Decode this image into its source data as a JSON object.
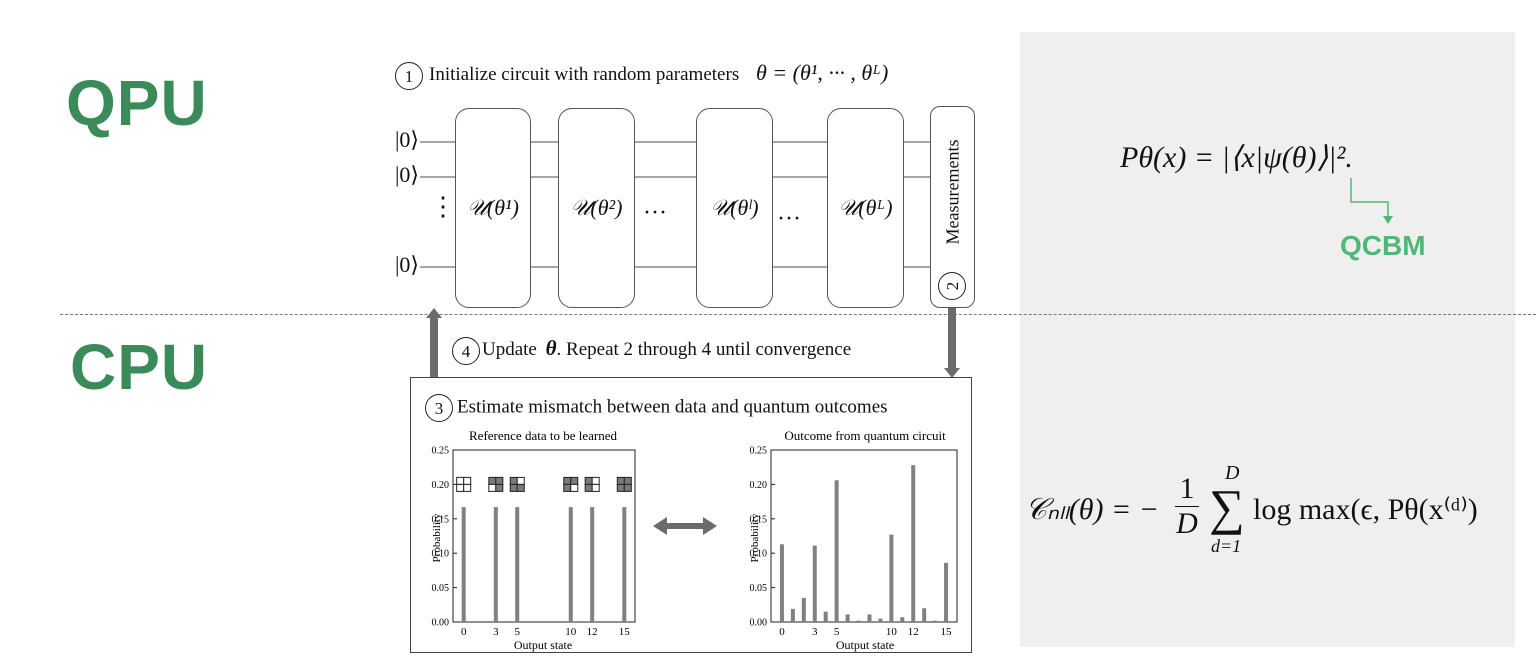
{
  "labels": {
    "qpu": "QPU",
    "cpu": "CPU",
    "qcbm": "QCBM"
  },
  "steps": {
    "step1_num": "1",
    "step1_text": "Initialize circuit with random parameters",
    "step1_math": "θ = (θ¹, ··· , θᴸ)",
    "step2_num": "2",
    "measurements": "Measurements",
    "step3_num": "3",
    "step3_text": "Estimate mismatch between data and quantum outcomes",
    "step4_num": "4",
    "step4_text_a": "Update",
    "step4_theta": "θ",
    "step4_text_b": ". Repeat 2 through 4 until convergence"
  },
  "circuit": {
    "kets": [
      "|0⟩",
      "|0⟩",
      "⋮",
      "|0⟩"
    ],
    "gates": [
      "𝒰(θ¹)",
      "𝒰(θ²)",
      "𝒰(θˡ)",
      "𝒰(θᴸ)"
    ],
    "dots": "···"
  },
  "formulas": {
    "prob": "Pθ(x) = |⟨x|ψ(θ)⟩|².",
    "cost_lhs": "𝒞ₙₗₗ(θ) = −",
    "cost_frac_num": "1",
    "cost_frac_den": "D",
    "cost_sum": "∑",
    "cost_sum_top": "D",
    "cost_sum_bottom": "d=1",
    "cost_rhs": "log max(ϵ, Pθ(x⁽ᵈ⁾)"
  },
  "chart_data": [
    {
      "type": "bar",
      "title": "Reference data to be learned",
      "xlabel": "Output state",
      "ylabel": "Probability",
      "ylim": [
        0,
        0.25
      ],
      "yticks": [
        "0.00",
        "0.05",
        "0.10",
        "0.15",
        "0.20",
        "0.25"
      ],
      "xticks": [
        "0",
        "3",
        "5",
        "10",
        "12",
        "15"
      ],
      "x": [
        0,
        3,
        5,
        10,
        12,
        15
      ],
      "values": [
        0.167,
        0.167,
        0.167,
        0.167,
        0.167,
        0.167
      ],
      "bar_color": "#808080"
    },
    {
      "type": "bar",
      "title": "Outcome from quantum circuit",
      "xlabel": "Output state",
      "ylabel": "Probability",
      "ylim": [
        0,
        0.25
      ],
      "yticks": [
        "0.00",
        "0.05",
        "0.10",
        "0.15",
        "0.20",
        "0.25"
      ],
      "xticks": [
        "0",
        "3",
        "5",
        "10",
        "12",
        "15"
      ],
      "x": [
        0,
        1,
        2,
        3,
        4,
        5,
        6,
        7,
        8,
        9,
        10,
        11,
        12,
        13,
        14,
        15
      ],
      "values": [
        0.113,
        0.019,
        0.035,
        0.111,
        0.015,
        0.206,
        0.011,
        0.002,
        0.011,
        0.005,
        0.127,
        0.007,
        0.228,
        0.02,
        0.002,
        0.086
      ],
      "bar_color": "#808080"
    }
  ],
  "colors": {
    "label_green": "#3a8a5a",
    "qcbm_green": "#4fb878",
    "panel_gray": "#efefef",
    "arrow_gray": "#6b6b6b"
  }
}
